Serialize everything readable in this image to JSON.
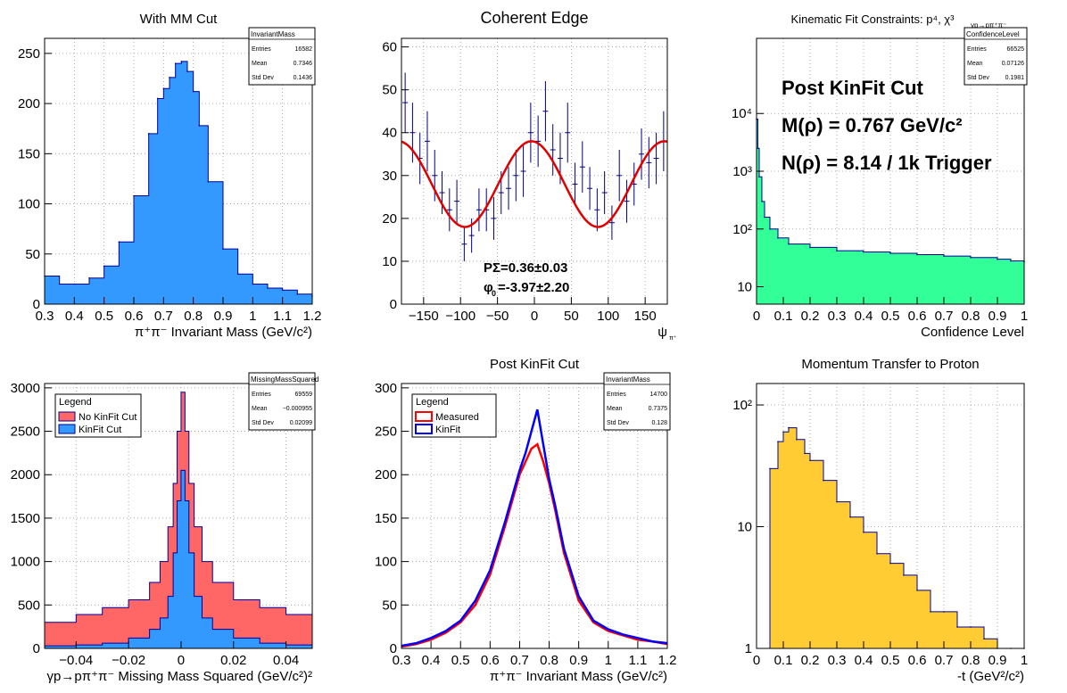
{
  "chart_data": [
    {
      "type": "bar",
      "title": "With MM Cut",
      "xlabel": "π⁺π⁻ Invariant Mass (GeV/c²)",
      "ylabel": "",
      "xlim": [
        0.3,
        1.2
      ],
      "ylim": [
        0,
        265
      ],
      "log_y": false,
      "grid": true,
      "x_ticks": [
        "0.3",
        "0.4",
        "0.5",
        "0.6",
        "0.7",
        "0.8",
        "0.9",
        "1",
        "1.1",
        "1.2"
      ],
      "y_ticks": [
        "0",
        "50",
        "100",
        "150",
        "200",
        "250"
      ],
      "fill": "#3399ff",
      "line": "#000099",
      "stats": {
        "name": "InvariantMass",
        "rows": [
          [
            "Entries",
            "16582"
          ],
          [
            "Mean",
            "0.7346"
          ],
          [
            "Std Dev",
            "0.1436"
          ]
        ]
      },
      "x": [
        0.3,
        0.35,
        0.4,
        0.45,
        0.5,
        0.55,
        0.6,
        0.65,
        0.68,
        0.7,
        0.72,
        0.74,
        0.76,
        0.78,
        0.8,
        0.82,
        0.85,
        0.9,
        0.95,
        1.0,
        1.05,
        1.1,
        1.15,
        1.2
      ],
      "values": [
        28,
        20,
        20,
        26,
        38,
        62,
        108,
        170,
        205,
        215,
        226,
        240,
        242,
        232,
        212,
        178,
        122,
        55,
        30,
        20,
        16,
        14,
        10,
        8
      ]
    },
    {
      "type": "scatter",
      "title": "Coherent Edge",
      "xlabel": "ψ",
      "xlabel_sub": "π⁺",
      "ylabel": "",
      "xlim": [
        -180,
        180
      ],
      "ylim": [
        0,
        62
      ],
      "grid": true,
      "x_ticks": [
        "−150",
        "−100",
        "−50",
        "0",
        "50",
        "100",
        "150"
      ],
      "y_ticks": [
        "0",
        "10",
        "20",
        "30",
        "40",
        "50",
        "60"
      ],
      "fit_color": "#e00000",
      "point_color": "#000080",
      "annotations": [
        "PΣ=0.36±0.03",
        "φ",
        "0",
        "=-3.97±2.20"
      ],
      "fit": {
        "offset": 28,
        "amplitude": 10,
        "phase_deg": -3.97
      },
      "x": [
        -175,
        -165,
        -155,
        -145,
        -135,
        -125,
        -115,
        -105,
        -95,
        -85,
        -75,
        -65,
        -55,
        -45,
        -35,
        -25,
        -15,
        -5,
        5,
        15,
        25,
        35,
        45,
        55,
        65,
        75,
        85,
        95,
        105,
        115,
        125,
        135,
        145,
        155,
        165,
        175
      ],
      "values": [
        47,
        40,
        34,
        38,
        30,
        26,
        22,
        24,
        14,
        16,
        22,
        22,
        20,
        26,
        27,
        30,
        31,
        40,
        38,
        45,
        36,
        34,
        40,
        28,
        32,
        27,
        22,
        26,
        19,
        30,
        24,
        28,
        35,
        33,
        34,
        38
      ],
      "errors": [
        7,
        7,
        6,
        7,
        6,
        5,
        5,
        5,
        4,
        4,
        5,
        5,
        5,
        5,
        5,
        6,
        6,
        7,
        6,
        7,
        6,
        6,
        7,
        5,
        6,
        5,
        5,
        5,
        4,
        6,
        5,
        5,
        6,
        6,
        6,
        7
      ]
    },
    {
      "type": "bar",
      "title": "Kinematic Fit Constraints: p⁴, χ³",
      "title_sub": "γp→pπ⁺π⁻",
      "xlabel": "Confidence Level",
      "ylabel": "",
      "xlim": [
        0,
        1
      ],
      "ylim": [
        5,
        200000
      ],
      "log_y": true,
      "grid": true,
      "x_ticks": [
        "0",
        "0.1",
        "0.2",
        "0.3",
        "0.4",
        "0.5",
        "0.6",
        "0.7",
        "0.8",
        "0.9",
        "1"
      ],
      "y_ticks": [
        "10",
        "10²",
        "10³",
        "10⁴"
      ],
      "fill": "#33ff99",
      "line": "#000099",
      "annotations": [
        "Post KinFit Cut",
        "M(ρ) = 0.767 GeV/c²",
        "N(ρ) = 8.14 / 1k Trigger"
      ],
      "stats": {
        "name": "ConfidenceLevel",
        "rows": [
          [
            "Entries",
            "66525"
          ],
          [
            "Mean",
            "0.07126"
          ],
          [
            "Std Dev",
            "0.1981"
          ]
        ]
      },
      "x": [
        0.0,
        0.005,
        0.01,
        0.02,
        0.03,
        0.05,
        0.08,
        0.12,
        0.2,
        0.3,
        0.4,
        0.5,
        0.6,
        0.7,
        0.8,
        0.9,
        0.95,
        1.0
      ],
      "values": [
        8000,
        2500,
        800,
        300,
        160,
        100,
        70,
        55,
        48,
        42,
        40,
        38,
        36,
        34,
        32,
        30,
        28,
        27
      ]
    },
    {
      "type": "bar",
      "title": "",
      "xlabel": "γp→pπ⁺π⁻ Missing Mass Squared (GeV/c²)²",
      "ylabel": "",
      "xlim": [
        -0.052,
        0.05
      ],
      "ylim": [
        0,
        3050
      ],
      "log_y": false,
      "grid": true,
      "x_ticks": [
        "−0.04",
        "−0.02",
        "0",
        "0.02",
        "0.04"
      ],
      "x_tick_values": [
        -0.04,
        -0.02,
        0,
        0.02,
        0.04
      ],
      "y_ticks": [
        "0",
        "500",
        "1000",
        "1500",
        "2000",
        "2500",
        "3000"
      ],
      "legend": {
        "title": "Legend",
        "placement": "top-left",
        "entries": [
          {
            "name": "No KinFit Cut",
            "color": "#ff6666"
          },
          {
            "name": "KinFit Cut",
            "color": "#3399ff"
          }
        ]
      },
      "stats": {
        "name": "MissingMassSquared",
        "rows": [
          [
            "Entries",
            "69559"
          ],
          [
            "Mean",
            "−0.000955"
          ],
          [
            "Std Dev",
            "0.02099"
          ]
        ]
      },
      "x": [
        -0.052,
        -0.04,
        -0.03,
        -0.02,
        -0.012,
        -0.008,
        -0.005,
        -0.003,
        -0.0015,
        0,
        0.0015,
        0.003,
        0.005,
        0.008,
        0.012,
        0.02,
        0.03,
        0.04,
        0.05
      ],
      "series": [
        {
          "name": "No KinFit Cut",
          "color": "#ff6666",
          "values": [
            300,
            390,
            470,
            560,
            760,
            1000,
            1400,
            1900,
            2500,
            2950,
            2500,
            1900,
            1400,
            1000,
            760,
            560,
            470,
            390,
            320
          ]
        },
        {
          "name": "KinFit Cut",
          "color": "#3399ff",
          "values": [
            30,
            40,
            60,
            120,
            220,
            350,
            600,
            1100,
            1700,
            2050,
            1700,
            1100,
            600,
            350,
            220,
            120,
            60,
            40,
            30
          ]
        }
      ]
    },
    {
      "type": "line",
      "title": "Post KinFit Cut",
      "xlabel": "π⁺π⁻ Invariant Mass (GeV/c²)",
      "ylabel": "",
      "xlim": [
        0.3,
        1.2
      ],
      "ylim": [
        0,
        305
      ],
      "log_y": false,
      "grid": true,
      "x_ticks": [
        "0.3",
        "0.4",
        "0.5",
        "0.6",
        "0.7",
        "0.8",
        "0.9",
        "1",
        "1.1",
        "1.2"
      ],
      "y_ticks": [
        "0",
        "50",
        "100",
        "150",
        "200",
        "250",
        "300"
      ],
      "legend": {
        "title": "Legend",
        "placement": "top-left",
        "entries": [
          {
            "name": "Measured",
            "color": "#ff0000"
          },
          {
            "name": "KinFit",
            "color": "#0000ff"
          }
        ]
      },
      "stats": {
        "name": "InvariantMass",
        "rows": [
          [
            "Entries",
            "14700"
          ],
          [
            "Mean",
            "0.7375"
          ],
          [
            "Std Dev",
            "0.128"
          ]
        ]
      },
      "x": [
        0.3,
        0.35,
        0.4,
        0.45,
        0.5,
        0.55,
        0.6,
        0.65,
        0.7,
        0.72,
        0.74,
        0.76,
        0.78,
        0.8,
        0.82,
        0.85,
        0.9,
        0.95,
        1.0,
        1.05,
        1.1,
        1.15,
        1.2
      ],
      "series": [
        {
          "name": "Measured",
          "color": "#ff0000",
          "values": [
            2,
            5,
            10,
            18,
            30,
            50,
            85,
            140,
            200,
            215,
            230,
            235,
            215,
            190,
            160,
            110,
            55,
            30,
            20,
            15,
            10,
            8,
            5
          ]
        },
        {
          "name": "KinFit",
          "color": "#0000ff",
          "values": [
            3,
            6,
            12,
            20,
            32,
            55,
            90,
            145,
            205,
            225,
            250,
            275,
            235,
            195,
            165,
            115,
            60,
            32,
            22,
            16,
            12,
            8,
            6
          ]
        }
      ]
    },
    {
      "type": "bar",
      "title": "Momentum Transfer to Proton",
      "xlabel": "-t (GeV²/c²)",
      "ylabel": "",
      "xlim": [
        0,
        1
      ],
      "ylim": [
        1,
        150
      ],
      "log_y": true,
      "grid": true,
      "x_ticks": [
        "0",
        "0.1",
        "0.2",
        "0.3",
        "0.4",
        "0.5",
        "0.6",
        "0.7",
        "0.8",
        "0.9",
        "1"
      ],
      "y_ticks": [
        "1",
        "10",
        "10²"
      ],
      "fill": "#ffcc33",
      "line": "#000099",
      "x": [
        0.05,
        0.08,
        0.1,
        0.12,
        0.15,
        0.18,
        0.2,
        0.25,
        0.3,
        0.35,
        0.4,
        0.45,
        0.5,
        0.55,
        0.6,
        0.65,
        0.7,
        0.75,
        0.8,
        0.85,
        0.9,
        0.95,
        1.0
      ],
      "values": [
        30,
        50,
        60,
        65,
        52,
        40,
        35,
        24,
        16,
        12,
        9,
        6,
        5,
        4,
        3,
        2,
        2,
        1.5,
        1.5,
        1.2,
        1,
        1,
        1
      ]
    }
  ]
}
